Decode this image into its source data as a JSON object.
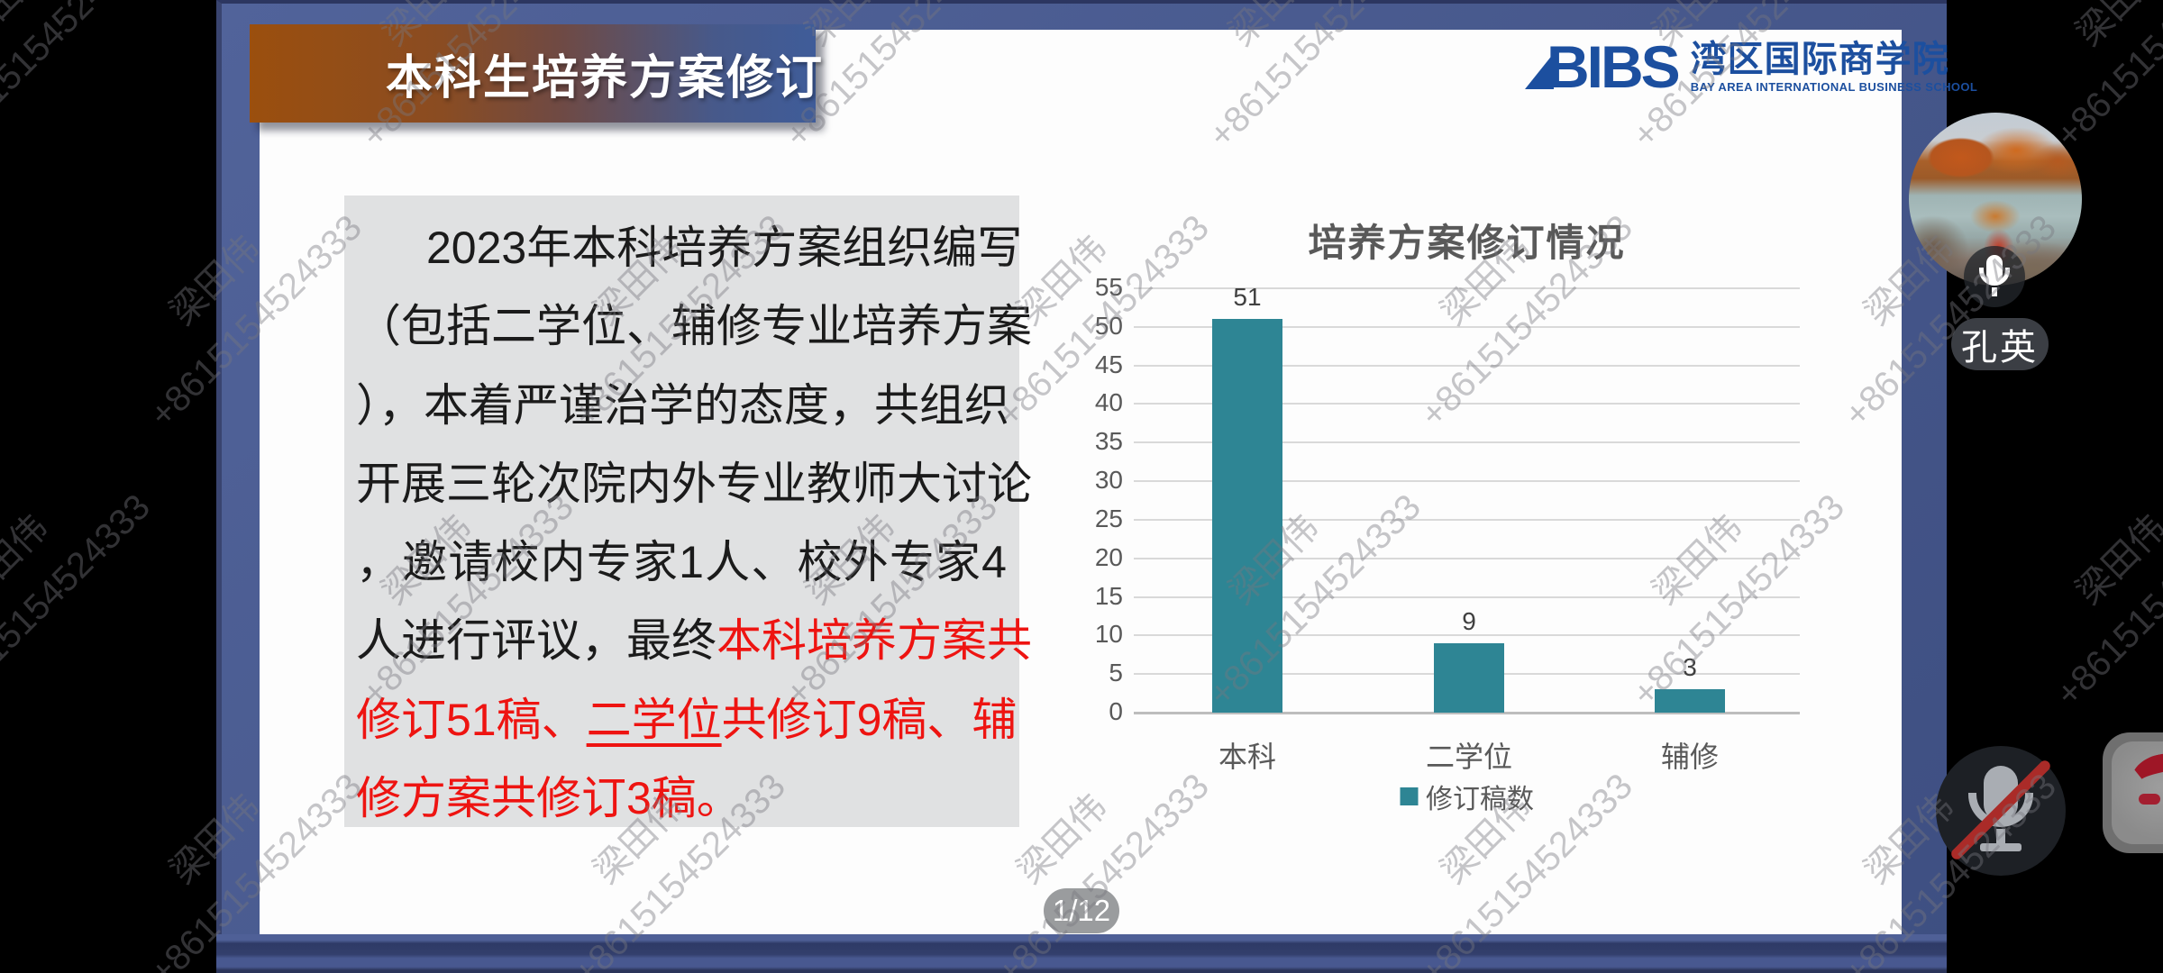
{
  "slide": {
    "banner_title": "本科生培养方案修订",
    "logo": {
      "mark": "BIBS",
      "cn": "湾区国际商学院",
      "en": "BAY AREA INTERNATIONAL BUSINESS SCHOOL"
    },
    "paragraph": {
      "lines": [
        {
          "indent": true,
          "segments": [
            {
              "s": "k",
              "t": "2023年本科培养方案组织编写"
            }
          ]
        },
        {
          "segments": [
            {
              "s": "k",
              "t": "（包括二学位、辅修专业培养方案"
            }
          ]
        },
        {
          "segments": [
            {
              "s": "k",
              "t": "），本着严谨治学的态度，共组织"
            }
          ]
        },
        {
          "segments": [
            {
              "s": "k",
              "t": "开展三轮次院内外专业教师大讨论"
            }
          ]
        },
        {
          "segments": [
            {
              "s": "k",
              "t": "，邀请校内专家1人、校外专家4"
            }
          ]
        },
        {
          "segments": [
            {
              "s": "k",
              "t": "人进行评议，最终"
            },
            {
              "s": "r",
              "t": "本科培养方案共"
            }
          ]
        },
        {
          "segments": [
            {
              "s": "r",
              "t": "修订51稿、"
            },
            {
              "s": "ru",
              "t": "二学位"
            },
            {
              "s": "r",
              "t": "共修订9稿、辅"
            }
          ]
        },
        {
          "last": true,
          "segments": [
            {
              "s": "r",
              "t": "修方案共修订3稿。"
            }
          ]
        }
      ]
    },
    "page_indicator": "1/12"
  },
  "chart_data": {
    "type": "bar",
    "title": "培养方案修订情况",
    "categories": [
      "本科",
      "二学位",
      "辅修"
    ],
    "series": [
      {
        "name": "修订稿数",
        "values": [
          51,
          9,
          3
        ]
      }
    ],
    "data_labels": [
      "51",
      "9",
      "3"
    ],
    "ylim": [
      0,
      55
    ],
    "ytick_step": 5,
    "grid": true,
    "legend_position": "bottom",
    "bar_color": "#2e8594"
  },
  "meeting": {
    "participant_name": "孔英",
    "mic_on_icon": "microphone-icon",
    "mic_muted_icon": "microphone-muted-icon"
  },
  "watermark": {
    "name": "梁田伟",
    "phone": "+8615154524333"
  },
  "colors": {
    "frame_blue": "#4a5c90",
    "banner_orange": "#9b4f0e",
    "banner_blue": "#3f5c99",
    "logo_blue": "#1c4f9f",
    "bar_teal": "#2e8594",
    "highlight_red": "#ee1411",
    "textbox_gray": "#e0e1e2",
    "chart_text_gray": "#595959"
  }
}
